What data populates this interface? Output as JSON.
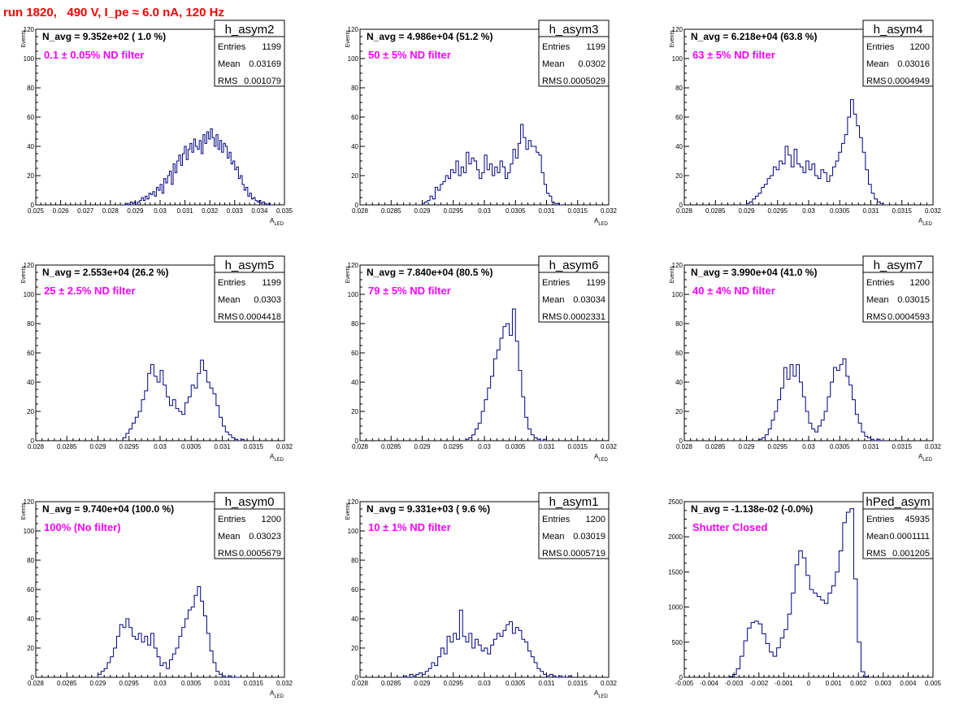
{
  "title": "run 1820,   490 V, I_pe ≈ 6.0 nA, 120 Hz",
  "colors": {
    "title": "#ff0000",
    "filter_text": "#ff00ff",
    "histogram": "#000080",
    "axes": "#000000"
  },
  "stat_labels": [
    "Entries",
    "Mean",
    "RMS"
  ],
  "chart_data": [
    {
      "type": "histogram",
      "name": "h_asym2",
      "navg": "N_avg = 9.352e+02 ( 1.0 %)",
      "filter": "0.1 ± 0.05% ND filter",
      "stats": [
        "1199",
        "0.03169",
        "0.001079"
      ],
      "ylabel": "Events",
      "xlabel": "A_LED",
      "xlim": [
        0.025,
        0.035
      ],
      "ylim": [
        0,
        120
      ],
      "xticks": [
        "0.025",
        "0.026",
        "0.027",
        "0.028",
        "0.029",
        "0.03",
        "0.031",
        "0.032",
        "0.033",
        "0.034",
        "0.035"
      ],
      "yticks": [
        "0",
        "20",
        "40",
        "60",
        "80",
        "100",
        "120"
      ],
      "bins": {
        "start": 0.0285,
        "end": 0.0345,
        "values": [
          0,
          0,
          1,
          0,
          2,
          1,
          2,
          0,
          2,
          3,
          5,
          3,
          6,
          4,
          8,
          7,
          9,
          6,
          12,
          10,
          14,
          8,
          18,
          15,
          20,
          23,
          14,
          28,
          22,
          30,
          34,
          27,
          35,
          40,
          31,
          38,
          42,
          36,
          45,
          40,
          38,
          44,
          35,
          48,
          42,
          50,
          45,
          52,
          46,
          40,
          48,
          38,
          44,
          36,
          42,
          40,
          32,
          36,
          28,
          30,
          24,
          26,
          18,
          20,
          14,
          10,
          12,
          6,
          8,
          4,
          5,
          3,
          2,
          3,
          1,
          2,
          1,
          0,
          1,
          0
        ]
      }
    },
    {
      "type": "histogram",
      "name": "h_asym3",
      "navg": "N_avg = 4.986e+04 (51.2 %)",
      "filter": "50 ± 5% ND filter",
      "stats": [
        "1199",
        "0.0302",
        "0.0005029"
      ],
      "ylabel": "Events",
      "xlabel": "A_LED",
      "xlim": [
        0.028,
        0.032
      ],
      "ylim": [
        0,
        120
      ],
      "xticks": [
        "0.028",
        "0.0285",
        "0.029",
        "0.0295",
        "0.03",
        "0.0305",
        "0.031",
        "0.0315",
        "0.032"
      ],
      "yticks": [
        "0",
        "20",
        "40",
        "60",
        "80",
        "100",
        "120"
      ],
      "bins": {
        "start": 0.029,
        "end": 0.03125,
        "values": [
          1,
          2,
          3,
          6,
          4,
          12,
          10,
          14,
          16,
          20,
          18,
          24,
          22,
          30,
          20,
          26,
          22,
          36,
          28,
          32,
          30,
          24,
          18,
          22,
          34,
          24,
          28,
          20,
          26,
          22,
          30,
          26,
          18,
          22,
          28,
          38,
          32,
          42,
          55,
          46,
          38,
          44,
          40,
          40,
          36,
          34,
          22,
          14,
          8,
          6,
          2,
          1,
          1,
          0
        ]
      }
    },
    {
      "type": "histogram",
      "name": "h_asym4",
      "navg": "N_avg = 6.218e+04 (63.8 %)",
      "filter": "63 ± 5% ND filter",
      "stats": [
        "1200",
        "0.03016",
        "0.0004949"
      ],
      "ylabel": "Events",
      "xlabel": "A_LED",
      "xlim": [
        0.028,
        0.032
      ],
      "ylim": [
        0,
        120
      ],
      "xticks": [
        "0.028",
        "0.0285",
        "0.029",
        "0.0295",
        "0.03",
        "0.0305",
        "0.031",
        "0.0315",
        "0.032"
      ],
      "yticks": [
        "0",
        "20",
        "40",
        "60",
        "80",
        "100",
        "120"
      ],
      "bins": {
        "start": 0.029,
        "end": 0.0312,
        "values": [
          1,
          2,
          4,
          6,
          8,
          12,
          14,
          18,
          20,
          26,
          24,
          30,
          28,
          40,
          34,
          26,
          38,
          28,
          26,
          22,
          30,
          24,
          28,
          20,
          18,
          24,
          22,
          16,
          20,
          26,
          30,
          36,
          42,
          48,
          60,
          72,
          62,
          54,
          46,
          36,
          24,
          14,
          8,
          4,
          2,
          1
        ]
      }
    },
    {
      "type": "histogram",
      "name": "h_asym5",
      "navg": "N_avg = 2.553e+04 (26.2 %)",
      "filter": "25 ± 2.5% ND filter",
      "stats": [
        "1199",
        "0.0303",
        "0.0004418"
      ],
      "ylabel": "Events",
      "xlabel": "A_LED",
      "xlim": [
        0.028,
        0.032
      ],
      "ylim": [
        0,
        120
      ],
      "xticks": [
        "0.028",
        "0.0285",
        "0.029",
        "0.0295",
        "0.03",
        "0.0305",
        "0.031",
        "0.0315",
        "0.032"
      ],
      "yticks": [
        "0",
        "20",
        "40",
        "60",
        "80",
        "100",
        "120"
      ],
      "bins": {
        "start": 0.0294,
        "end": 0.03135,
        "values": [
          2,
          5,
          8,
          12,
          16,
          20,
          28,
          34,
          46,
          52,
          44,
          40,
          48,
          38,
          30,
          24,
          28,
          22,
          20,
          18,
          26,
          30,
          38,
          36,
          46,
          55,
          48,
          40,
          36,
          32,
          24,
          16,
          10,
          6,
          4,
          2,
          1,
          0,
          1
        ]
      }
    },
    {
      "type": "histogram",
      "name": "h_asym6",
      "navg": "N_avg = 7.840e+04 (80.5 %)",
      "filter": "79 ± 5% ND filter",
      "stats": [
        "1199",
        "0.03034",
        "0.0002331"
      ],
      "ylabel": "Events",
      "xlabel": "A_LED",
      "xlim": [
        0.028,
        0.032
      ],
      "ylim": [
        0,
        120
      ],
      "xticks": [
        "0.028",
        "0.0285",
        "0.029",
        "0.0295",
        "0.03",
        "0.0305",
        "0.031",
        "0.0315",
        "0.032"
      ],
      "yticks": [
        "0",
        "20",
        "40",
        "60",
        "80",
        "100",
        "120"
      ],
      "bins": {
        "start": 0.0297,
        "end": 0.031,
        "values": [
          1,
          2,
          4,
          8,
          12,
          20,
          28,
          36,
          44,
          56,
          62,
          70,
          78,
          80,
          72,
          90,
          68,
          48,
          30,
          16,
          8,
          4,
          2,
          1,
          0,
          1
        ]
      }
    },
    {
      "type": "histogram",
      "name": "h_asym7",
      "navg": "N_avg = 3.990e+04 (41.0 %)",
      "filter": "40 ± 4% ND filter",
      "stats": [
        "1200",
        "0.03015",
        "0.0004593"
      ],
      "ylabel": "Events",
      "xlabel": "A_LED",
      "xlim": [
        0.028,
        0.032
      ],
      "ylim": [
        0,
        120
      ],
      "xticks": [
        "0.028",
        "0.0285",
        "0.029",
        "0.0295",
        "0.03",
        "0.0305",
        "0.031",
        "0.0315",
        "0.032"
      ],
      "yticks": [
        "0",
        "20",
        "40",
        "60",
        "80",
        "100",
        "120"
      ],
      "bins": {
        "start": 0.0292,
        "end": 0.0312,
        "values": [
          1,
          2,
          4,
          8,
          14,
          20,
          28,
          36,
          50,
          42,
          52,
          44,
          52,
          40,
          30,
          20,
          12,
          8,
          6,
          10,
          14,
          20,
          30,
          40,
          50,
          48,
          52,
          56,
          44,
          38,
          28,
          18,
          12,
          6,
          3,
          2,
          1,
          0,
          1,
          0
        ]
      }
    },
    {
      "type": "histogram",
      "name": "h_asym0",
      "navg": "N_avg = 9.740e+04 (100.0 %)",
      "filter": "100% (No filter)",
      "stats": [
        "1200",
        "0.03023",
        "0.0005679"
      ],
      "ylabel": "Events",
      "xlabel": "A_LED",
      "xlim": [
        0.028,
        0.032
      ],
      "ylim": [
        0,
        120
      ],
      "xticks": [
        "0.028",
        "0.0285",
        "0.029",
        "0.0295",
        "0.03",
        "0.0305",
        "0.031",
        "0.0315",
        "0.032"
      ],
      "yticks": [
        "0",
        "20",
        "40",
        "60",
        "80",
        "100",
        "120"
      ],
      "bins": {
        "start": 0.029,
        "end": 0.0313,
        "values": [
          2,
          4,
          6,
          10,
          14,
          20,
          28,
          36,
          34,
          40,
          34,
          28,
          26,
          30,
          24,
          28,
          22,
          30,
          20,
          14,
          8,
          10,
          6,
          12,
          16,
          20,
          28,
          34,
          40,
          46,
          48,
          56,
          62,
          52,
          42,
          30,
          18,
          10,
          4,
          2,
          1,
          0,
          1,
          0,
          0,
          0
        ]
      }
    },
    {
      "type": "histogram",
      "name": "h_asym1",
      "navg": "N_avg = 9.331e+03 ( 9.6 %)",
      "filter": "10 ± 1% ND filter",
      "stats": [
        "1200",
        "0.03019",
        "0.0005719"
      ],
      "ylabel": "Events",
      "xlabel": "A_LED",
      "xlim": [
        0.028,
        0.032
      ],
      "ylim": [
        0,
        120
      ],
      "xticks": [
        "0.028",
        "0.0285",
        "0.029",
        "0.0295",
        "0.03",
        "0.0305",
        "0.031",
        "0.0315",
        "0.032"
      ],
      "yticks": [
        "0",
        "20",
        "40",
        "60",
        "80",
        "100",
        "120"
      ],
      "bins": {
        "start": 0.0287,
        "end": 0.0314,
        "values": [
          1,
          0,
          2,
          1,
          2,
          3,
          2,
          4,
          6,
          10,
          8,
          14,
          20,
          16,
          28,
          24,
          30,
          26,
          46,
          28,
          24,
          30,
          20,
          26,
          22,
          18,
          20,
          16,
          22,
          26,
          30,
          28,
          32,
          36,
          38,
          30,
          34,
          32,
          26,
          24,
          18,
          14,
          10,
          6,
          4,
          2,
          1,
          2,
          1,
          0,
          1,
          0,
          0,
          1
        ]
      }
    },
    {
      "type": "histogram",
      "name": "hPed_asym",
      "navg": "N_avg = -1.138e-02 (-0.0%)",
      "filter": "Shutter Closed",
      "stats": [
        "45935",
        "0.0001111",
        "0.001205"
      ],
      "ylabel": "",
      "xlabel": "",
      "xlim": [
        -0.005,
        0.005
      ],
      "ylim": [
        0,
        2500
      ],
      "xticks": [
        "-0.005",
        "-0.004",
        "-0.003",
        "-0.002",
        "-0.001",
        "0",
        "0.001",
        "0.002",
        "0.003",
        "0.004",
        "0.005"
      ],
      "yticks": [
        "0",
        "500",
        "1000",
        "1500",
        "2000",
        "2500"
      ],
      "bins": {
        "start": -0.0032,
        "end": 0.0024,
        "values": [
          10,
          40,
          120,
          300,
          520,
          700,
          780,
          800,
          760,
          620,
          480,
          360,
          300,
          420,
          560,
          680,
          900,
          1200,
          1600,
          1800,
          1700,
          1450,
          1250,
          1200,
          1150,
          1100,
          1050,
          1200,
          1300,
          1500,
          1800,
          2200,
          2350,
          2400,
          1400,
          500,
          80,
          10
        ]
      }
    }
  ]
}
